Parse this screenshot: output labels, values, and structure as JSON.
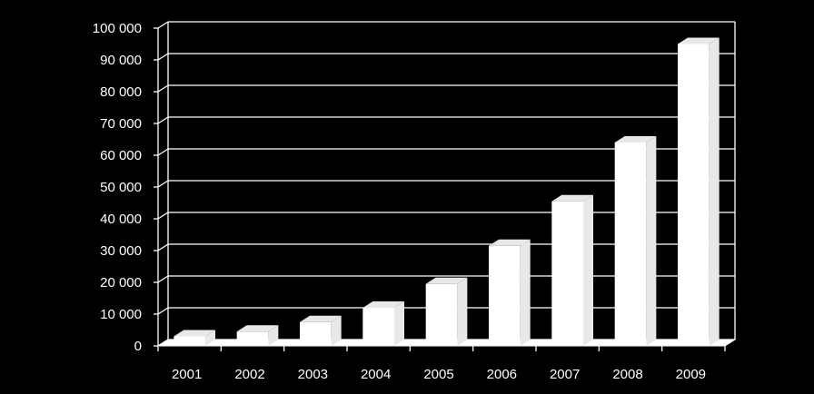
{
  "chart_data": {
    "type": "bar",
    "title": "",
    "xlabel": "",
    "ylabel": "",
    "categories": [
      "2001",
      "2002",
      "2003",
      "2004",
      "2005",
      "2006",
      "2007",
      "2008",
      "2009"
    ],
    "values": [
      3000,
      4500,
      7500,
      12000,
      19500,
      31500,
      45500,
      64000,
      95000
    ],
    "y_ticks": [
      "0",
      "10 000",
      "20 000",
      "30 000",
      "40 000",
      "50 000",
      "60 000",
      "70 000",
      "80 000",
      "90 000",
      "100 000"
    ],
    "ylim": [
      0,
      100000
    ],
    "grid": true,
    "legend": "none",
    "colors": {
      "background": "#000000",
      "bar_front": "#ffffff",
      "bar_side": "#e8e8e8",
      "grid": "#ffffff",
      "text": "#ffffff"
    }
  }
}
